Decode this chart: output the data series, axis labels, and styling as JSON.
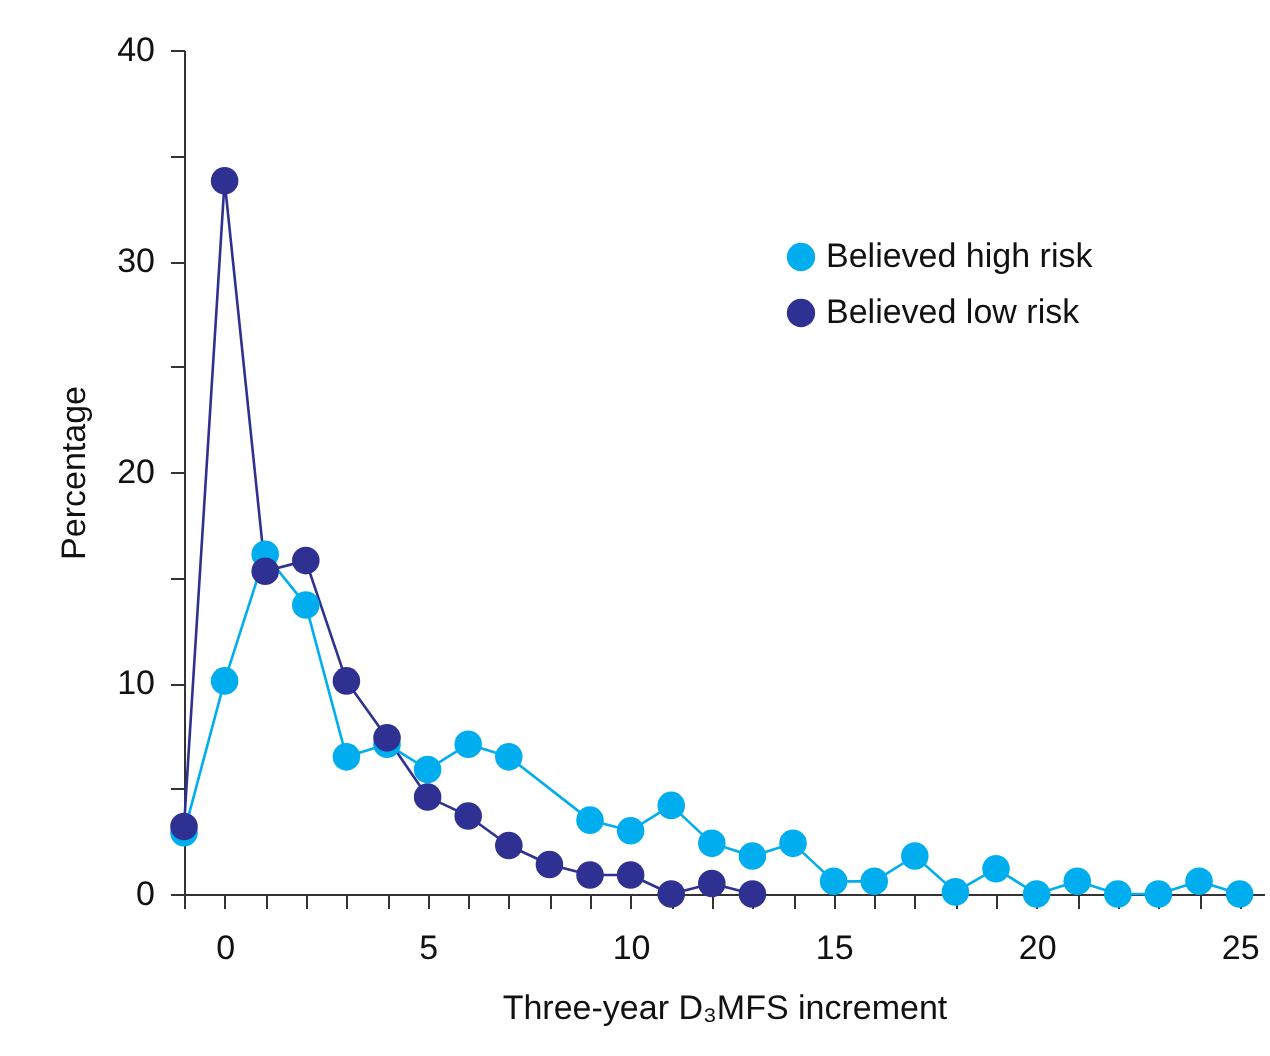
{
  "chart_data": {
    "type": "line",
    "xlabel": "Three-year D₃MFS increment",
    "ylabel": "Percentage",
    "xlim": [
      -1,
      25.6
    ],
    "ylim": [
      0,
      40
    ],
    "xticks": [
      {
        "value": -1,
        "label": null
      },
      0,
      {
        "value": 1,
        "label": null
      },
      {
        "value": 2,
        "label": null
      },
      {
        "value": 3,
        "label": null
      },
      {
        "value": 4,
        "label": null
      },
      5,
      {
        "value": 6,
        "label": null
      },
      {
        "value": 7,
        "label": null
      },
      {
        "value": 8,
        "label": null
      },
      {
        "value": 9,
        "label": null
      },
      10,
      {
        "value": 11,
        "label": null
      },
      {
        "value": 12,
        "label": null
      },
      {
        "value": 13,
        "label": null
      },
      {
        "value": 14,
        "label": null
      },
      15,
      {
        "value": 16,
        "label": null
      },
      {
        "value": 17,
        "label": null
      },
      {
        "value": 18,
        "label": null
      },
      {
        "value": 19,
        "label": null
      },
      20,
      {
        "value": 21,
        "label": null
      },
      {
        "value": 22,
        "label": null
      },
      {
        "value": 23,
        "label": null
      },
      {
        "value": 24,
        "label": null
      },
      25
    ],
    "yticks": [
      0,
      {
        "value": 5,
        "label": null
      },
      10,
      {
        "value": 15,
        "label": null
      },
      20,
      {
        "value": 25,
        "label": null
      },
      30,
      {
        "value": 35,
        "label": null
      },
      40
    ],
    "marker": "circle",
    "grid": false,
    "legend": "top right",
    "series": [
      {
        "name": "Believed high risk",
        "color": "#00aeef",
        "x": [
          -1,
          0,
          1,
          2,
          3,
          4,
          5,
          6,
          7,
          9,
          10,
          11,
          12,
          13,
          14,
          15,
          16,
          17,
          18,
          19,
          20,
          21,
          22,
          23,
          24,
          25
        ],
        "values": [
          2.9,
          10.1,
          16.1,
          13.7,
          6.5,
          7.1,
          5.9,
          7.1,
          6.5,
          3.5,
          3.0,
          4.2,
          2.4,
          1.8,
          2.4,
          0.6,
          0.6,
          1.8,
          0.1,
          1.2,
          0,
          0.6,
          0,
          0,
          0.6,
          0
        ]
      },
      {
        "name": "Believed low risk",
        "color": "#2e3192",
        "x": [
          -1,
          0,
          1,
          2,
          3,
          4,
          5,
          6,
          7,
          8,
          9,
          10,
          11,
          12,
          13
        ],
        "values": [
          3.2,
          33.8,
          15.3,
          15.8,
          10.1,
          7.4,
          4.6,
          3.7,
          2.3,
          1.4,
          0.9,
          0.9,
          0,
          0.5,
          0
        ]
      }
    ]
  }
}
